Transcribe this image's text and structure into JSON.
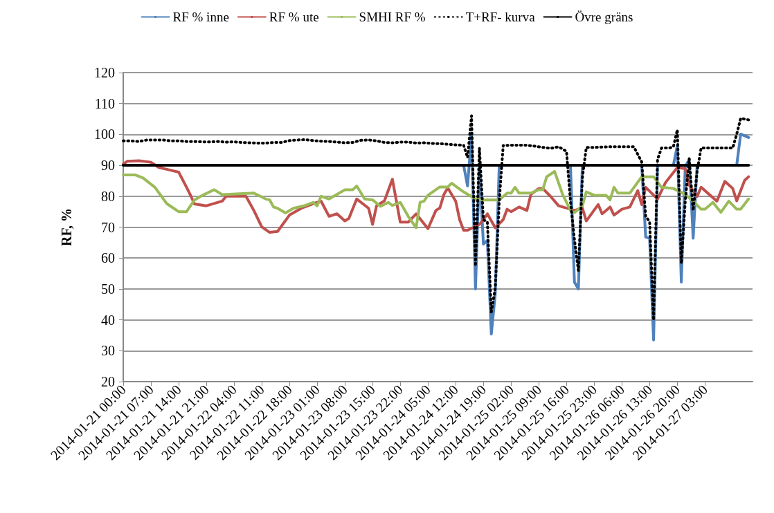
{
  "chart_data": {
    "type": "line",
    "ylabel": "RF, %",
    "ylim": [
      20,
      120
    ],
    "yticks": [
      20,
      30,
      40,
      50,
      60,
      70,
      80,
      90,
      100,
      110,
      120
    ],
    "xlim": [
      "2014-01-21T00:00",
      "2014-01-27T15:00"
    ],
    "xticks": [
      {
        "value": "2014-01-21T00:00",
        "label": "2014-01-21 00:00"
      },
      {
        "value": "2014-01-21T07:00",
        "label": "2014-01-21 07:00"
      },
      {
        "value": "2014-01-21T14:00",
        "label": "2014-01-21 14:00"
      },
      {
        "value": "2014-01-21T21:00",
        "label": "2014-01-21 21:00"
      },
      {
        "value": "2014-01-22T04:00",
        "label": "2014-01-22 04:00"
      },
      {
        "value": "2014-01-22T11:00",
        "label": "2014-01-22 11:00"
      },
      {
        "value": "2014-01-22T18:00",
        "label": "2014-01-22 18:00"
      },
      {
        "value": "2014-01-23T01:00",
        "label": "2014-01-23 01:00"
      },
      {
        "value": "2014-01-23T08:00",
        "label": "2014-01-23 08:00"
      },
      {
        "value": "2014-01-23T15:00",
        "label": "2014-01-23 15:00"
      },
      {
        "value": "2014-01-23T22:00",
        "label": "2014-01-23 22:00"
      },
      {
        "value": "2014-01-24T05:00",
        "label": "2014-01-24 05:00"
      },
      {
        "value": "2014-01-24T12:00",
        "label": "2014-01-24 12:00"
      },
      {
        "value": "2014-01-24T19:00",
        "label": "2014-01-24 19:00"
      },
      {
        "value": "2014-01-25T02:00",
        "label": "2014-01-25 02:00"
      },
      {
        "value": "2014-01-25T09:00",
        "label": "2014-01-25 09:00"
      },
      {
        "value": "2014-01-25T16:00",
        "label": "2014-01-25 16:00"
      },
      {
        "value": "2014-01-25T23:00",
        "label": "2014-01-25 23:00"
      },
      {
        "value": "2014-01-26T06:00",
        "label": "2014-01-26 06:00"
      },
      {
        "value": "2014-01-26T13:00",
        "label": "2014-01-26 13:00"
      },
      {
        "value": "2014-01-26T20:00",
        "label": "2014-01-26 20:00"
      },
      {
        "value": "2014-01-27T03:00",
        "label": "2014-01-27 03:00"
      }
    ],
    "grid": "y",
    "legend": "top",
    "marker": "none",
    "series": [
      {
        "name": "RF % inne",
        "color": "#4f81bd",
        "x": [
          "2014-01-24T13:00",
          "2014-01-24T14:00",
          "2014-01-24T15:00",
          "2014-01-24T16:00",
          "2014-01-24T17:00",
          "2014-01-24T18:00",
          "2014-01-24T19:00",
          "2014-01-24T20:00",
          "2014-01-24T21:00",
          "2014-01-24T22:00",
          "2014-01-24T23:00",
          "2014-01-25T00:00",
          "2014-01-25T17:00",
          "2014-01-25T18:00",
          "2014-01-25T19:00",
          "2014-01-25T20:00",
          "2014-01-25T21:00",
          "2014-01-26T11:00",
          "2014-01-26T12:00",
          "2014-01-26T13:00",
          "2014-01-26T14:00",
          "2014-01-26T15:00",
          "2014-01-26T16:00",
          "2014-01-26T19:00",
          "2014-01-26T20:00",
          "2014-01-26T21:00",
          "2014-01-26T22:00",
          "2014-01-26T23:00",
          "2014-01-27T00:00",
          "2014-01-27T01:00",
          "2014-01-27T02:00",
          "2014-01-27T11:00",
          "2014-01-27T12:00",
          "2014-01-27T14:00"
        ],
        "values": [
          90,
          90,
          83.3,
          100.1,
          50,
          89.6,
          64.5,
          65.7,
          35.4,
          48.4,
          90,
          null,
          90,
          52.2,
          50,
          90,
          null,
          90,
          66.8,
          66.4,
          33.5,
          90,
          null,
          90,
          96.4,
          52.2,
          89.6,
          91.9,
          66.4,
          90,
          null,
          90,
          100.1,
          99
        ]
      },
      {
        "name": "RF % ute",
        "color": "#c0504d",
        "x": [
          "2014-01-21T00:00",
          "2014-01-21T01:00",
          "2014-01-21T04:00",
          "2014-01-21T07:00",
          "2014-01-21T09:00",
          "2014-01-21T11:00",
          "2014-01-21T14:00",
          "2014-01-21T16:00",
          "2014-01-21T17:00",
          "2014-01-21T18:00",
          "2014-01-21T21:00",
          "2014-01-22T01:00",
          "2014-01-22T02:00",
          "2014-01-22T07:00",
          "2014-01-22T09:00",
          "2014-01-22T11:00",
          "2014-01-22T13:00",
          "2014-01-22T15:00",
          "2014-01-22T18:00",
          "2014-01-22T21:00",
          "2014-01-23T00:00",
          "2014-01-23T02:00",
          "2014-01-23T04:00",
          "2014-01-23T06:00",
          "2014-01-23T08:00",
          "2014-01-23T09:00",
          "2014-01-23T11:00",
          "2014-01-23T14:00",
          "2014-01-23T15:00",
          "2014-01-23T16:00",
          "2014-01-23T18:00",
          "2014-01-23T20:00",
          "2014-01-23T22:00",
          "2014-01-24T00:00",
          "2014-01-24T02:00",
          "2014-01-24T05:00",
          "2014-01-24T07:00",
          "2014-01-24T08:00",
          "2014-01-24T09:00",
          "2014-01-24T10:00",
          "2014-01-24T12:00",
          "2014-01-24T13:00",
          "2014-01-24T14:00",
          "2014-01-24T15:00",
          "2014-01-24T18:00",
          "2014-01-24T19:00",
          "2014-01-24T20:00",
          "2014-01-24T22:00",
          "2014-01-25T00:00",
          "2014-01-25T01:00",
          "2014-01-25T02:00",
          "2014-01-25T04:00",
          "2014-01-25T06:00",
          "2014-01-25T07:00",
          "2014-01-25T09:00",
          "2014-01-25T10:00",
          "2014-01-25T12:00",
          "2014-01-25T14:00",
          "2014-01-25T17:00",
          "2014-01-25T18:00",
          "2014-01-25T20:00",
          "2014-01-25T21:00",
          "2014-01-26T00:00",
          "2014-01-26T01:00",
          "2014-01-26T03:00",
          "2014-01-26T04:00",
          "2014-01-26T06:00",
          "2014-01-26T08:00",
          "2014-01-26T10:00",
          "2014-01-26T11:00",
          "2014-01-26T12:00",
          "2014-01-26T15:00",
          "2014-01-26T17:00",
          "2014-01-26T20:00",
          "2014-01-26T22:00",
          "2014-01-26T23:00",
          "2014-01-27T01:00",
          "2014-01-27T02:00",
          "2014-01-27T06:00",
          "2014-01-27T08:00",
          "2014-01-27T10:00",
          "2014-01-27T11:00",
          "2014-01-27T13:00",
          "2014-01-27T14:00"
        ],
        "values": [
          90.4,
          91.3,
          91.5,
          91,
          89.3,
          88.7,
          87.8,
          82.9,
          80.3,
          77.5,
          76.9,
          78.4,
          80,
          80,
          75.4,
          70.1,
          68.3,
          68.6,
          73.9,
          76.1,
          77.6,
          78.4,
          73.5,
          74.3,
          72,
          72.8,
          79.1,
          76.1,
          70.9,
          76.9,
          78.5,
          85.5,
          71.6,
          71.6,
          74.3,
          69.5,
          75.4,
          76.2,
          80.5,
          82.7,
          78.4,
          72.4,
          69,
          69,
          70.9,
          72.4,
          74.3,
          69.8,
          72.4,
          75.8,
          75,
          76.5,
          75.4,
          80.6,
          82.5,
          82.5,
          79.9,
          76.9,
          75.8,
          75.4,
          76.2,
          72,
          77.3,
          74.3,
          76.5,
          73.9,
          75.8,
          76.5,
          81.8,
          77.3,
          82.9,
          79.1,
          84.4,
          89.3,
          88.9,
          83.6,
          79.9,
          82.9,
          78.4,
          84.8,
          82.5,
          78.5,
          85.1,
          86.3
        ]
      },
      {
        "name": "SMHI RF %",
        "color": "#9bbb59",
        "x": [
          "2014-01-21T00:00",
          "2014-01-21T03:00",
          "2014-01-21T05:00",
          "2014-01-21T08:00",
          "2014-01-21T11:00",
          "2014-01-21T14:00",
          "2014-01-21T16:00",
          "2014-01-21T18:00",
          "2014-01-21T20:00",
          "2014-01-21T23:00",
          "2014-01-22T01:00",
          "2014-01-22T09:00",
          "2014-01-22T12:00",
          "2014-01-22T13:00",
          "2014-01-22T14:00",
          "2014-01-22T15:00",
          "2014-01-22T17:00",
          "2014-01-22T19:00",
          "2014-01-22T22:00",
          "2014-01-23T00:00",
          "2014-01-23T01:00",
          "2014-01-23T02:00",
          "2014-01-23T04:00",
          "2014-01-23T08:00",
          "2014-01-23T10:00",
          "2014-01-23T11:00",
          "2014-01-23T13:00",
          "2014-01-23T15:00",
          "2014-01-23T17:00",
          "2014-01-23T19:00",
          "2014-01-23T20:00",
          "2014-01-23T22:00",
          "2014-01-24T00:00",
          "2014-01-24T02:00",
          "2014-01-24T03:00",
          "2014-01-24T04:00",
          "2014-01-24T05:00",
          "2014-01-24T08:00",
          "2014-01-24T10:00",
          "2014-01-24T11:00",
          "2014-01-24T14:00",
          "2014-01-24T17:00",
          "2014-01-24T19:00",
          "2014-01-24T23:00",
          "2014-01-25T01:00",
          "2014-01-25T02:00",
          "2014-01-25T03:00",
          "2014-01-25T04:00",
          "2014-01-25T07:00",
          "2014-01-25T09:00",
          "2014-01-25T10:00",
          "2014-01-25T11:00",
          "2014-01-25T13:00",
          "2014-01-25T15:00",
          "2014-01-25T17:00",
          "2014-01-25T18:00",
          "2014-01-25T20:00",
          "2014-01-25T21:00",
          "2014-01-25T23:00",
          "2014-01-26T02:00",
          "2014-01-26T03:00",
          "2014-01-26T04:00",
          "2014-01-26T05:00",
          "2014-01-26T08:00",
          "2014-01-26T11:00",
          "2014-01-26T14:00",
          "2014-01-26T16:00",
          "2014-01-26T19:00",
          "2014-01-26T22:00",
          "2014-01-27T00:00",
          "2014-01-27T02:00",
          "2014-01-27T03:00",
          "2014-01-27T05:00",
          "2014-01-27T07:00",
          "2014-01-27T09:00",
          "2014-01-27T11:00",
          "2014-01-27T12:00",
          "2014-01-27T14:00"
        ],
        "values": [
          86.9,
          86.9,
          85.9,
          82.9,
          77.6,
          75,
          75,
          78.8,
          80.3,
          82.1,
          80.5,
          81,
          79.1,
          78.8,
          76.5,
          76.1,
          74.6,
          76.1,
          77,
          78,
          76.9,
          80,
          79.1,
          82.1,
          82.1,
          83.3,
          79.1,
          78.8,
          76.7,
          78,
          77,
          78,
          73.5,
          69.8,
          78,
          78.4,
          80.3,
          83,
          83,
          84.2,
          81.4,
          79.1,
          78.8,
          78.8,
          81,
          81,
          82.9,
          81,
          81,
          82.1,
          82.1,
          86.3,
          88,
          80.6,
          75.4,
          74.7,
          76.9,
          81.4,
          80.3,
          80.3,
          78.8,
          82.9,
          81,
          81,
          86.3,
          86.3,
          82.9,
          82.5,
          80.6,
          78.4,
          75.8,
          75.8,
          78,
          74.8,
          78.4,
          75.8,
          75.8,
          79.1
        ]
      },
      {
        "name": "T+RF- kurva",
        "color": "#000000",
        "line_style": "dotted",
        "x": [
          "2014-01-21T00:00",
          "2014-01-21T02:00",
          "2014-01-21T04:00",
          "2014-01-21T06:00",
          "2014-01-21T08:00",
          "2014-01-21T10:00",
          "2014-01-21T12:00",
          "2014-01-21T14:00",
          "2014-01-21T16:00",
          "2014-01-21T18:00",
          "2014-01-21T20:00",
          "2014-01-21T22:00",
          "2014-01-22T00:00",
          "2014-01-22T02:00",
          "2014-01-22T04:00",
          "2014-01-22T06:00",
          "2014-01-22T08:00",
          "2014-01-22T10:00",
          "2014-01-22T12:00",
          "2014-01-22T14:00",
          "2014-01-22T16:00",
          "2014-01-22T18:00",
          "2014-01-22T20:00",
          "2014-01-22T22:00",
          "2014-01-23T00:00",
          "2014-01-23T02:00",
          "2014-01-23T04:00",
          "2014-01-23T06:00",
          "2014-01-23T08:00",
          "2014-01-23T10:00",
          "2014-01-23T12:00",
          "2014-01-23T14:00",
          "2014-01-23T16:00",
          "2014-01-23T18:00",
          "2014-01-23T20:00",
          "2014-01-23T22:00",
          "2014-01-24T00:00",
          "2014-01-24T02:00",
          "2014-01-24T04:00",
          "2014-01-24T06:00",
          "2014-01-24T08:00",
          "2014-01-24T10:00",
          "2014-01-24T12:00",
          "2014-01-24T14:00",
          "2014-01-24T15:00",
          "2014-01-24T16:00",
          "2014-01-24T17:00",
          "2014-01-24T18:00",
          "2014-01-24T19:00",
          "2014-01-24T20:00",
          "2014-01-24T21:00",
          "2014-01-24T22:00",
          "2014-01-24T23:00",
          "2014-01-25T00:00",
          "2014-01-25T02:00",
          "2014-01-25T04:00",
          "2014-01-25T06:00",
          "2014-01-25T08:00",
          "2014-01-25T10:00",
          "2014-01-25T12:00",
          "2014-01-25T14:00",
          "2014-01-25T16:00",
          "2014-01-25T17:00",
          "2014-01-25T18:00",
          "2014-01-25T19:00",
          "2014-01-25T20:00",
          "2014-01-25T21:00",
          "2014-01-25T23:00",
          "2014-01-26T01:00",
          "2014-01-26T03:00",
          "2014-01-26T05:00",
          "2014-01-26T07:00",
          "2014-01-26T09:00",
          "2014-01-26T11:00",
          "2014-01-26T12:00",
          "2014-01-26T13:00",
          "2014-01-26T14:00",
          "2014-01-26T15:00",
          "2014-01-26T16:00",
          "2014-01-26T18:00",
          "2014-01-26T19:00",
          "2014-01-26T20:00",
          "2014-01-26T21:00",
          "2014-01-26T22:00",
          "2014-01-26T23:00",
          "2014-01-27T00:00",
          "2014-01-27T01:00",
          "2014-01-27T02:00",
          "2014-01-27T04:00",
          "2014-01-27T06:00",
          "2014-01-27T08:00",
          "2014-01-27T10:00",
          "2014-01-27T11:00",
          "2014-01-27T12:00",
          "2014-01-27T14:00"
        ],
        "values": [
          97.9,
          97.9,
          97.7,
          98.2,
          98.2,
          98.2,
          97.9,
          97.9,
          97.7,
          97.7,
          97.6,
          97.6,
          97.7,
          97.5,
          97.6,
          97.4,
          97.3,
          97.2,
          97.2,
          97.4,
          97.4,
          98,
          98.2,
          98.3,
          98,
          97.8,
          97.7,
          97.5,
          97.3,
          97.4,
          98.1,
          98.2,
          97.9,
          97.4,
          97.3,
          97.5,
          97.5,
          97.2,
          97.3,
          97.1,
          97,
          96.8,
          96.6,
          96.5,
          92.5,
          106,
          57.4,
          95.6,
          72.4,
          71.7,
          42.5,
          50.3,
          78.4,
          96.4,
          96.5,
          96.5,
          96.5,
          96.2,
          95.8,
          95.5,
          96,
          94.5,
          78.4,
          66,
          55.9,
          85.9,
          95.8,
          95.8,
          95.9,
          96,
          96,
          96,
          96,
          91.1,
          73.5,
          71.7,
          39.9,
          91.9,
          95.6,
          95.6,
          96,
          101.5,
          58.2,
          78.4,
          92.2,
          75.4,
          88.1,
          95.6,
          95.6,
          95.6,
          95.6,
          95.6,
          100.1,
          105.2,
          104.7
        ]
      },
      {
        "name": "Övre gräns",
        "color": "#000000",
        "x": [
          "2014-01-21T00:00",
          "2014-01-27T14:00"
        ],
        "values": [
          90,
          90
        ]
      }
    ]
  }
}
